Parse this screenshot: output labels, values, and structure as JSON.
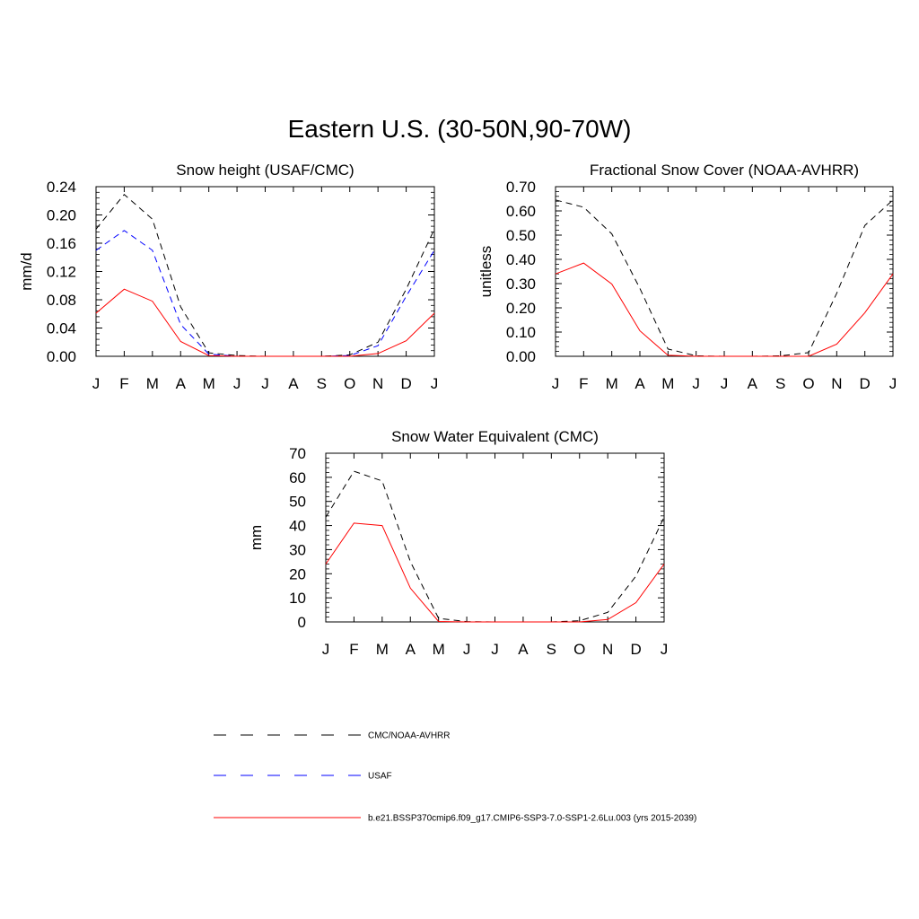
{
  "title": "Eastern U.S. (30-50N,90-70W)",
  "months": [
    "J",
    "F",
    "M",
    "A",
    "M",
    "J",
    "J",
    "A",
    "S",
    "O",
    "N",
    "D",
    "J"
  ],
  "legend": [
    {
      "label": "CMC/NOAA-AVHRR",
      "color": "#000000",
      "dash": true
    },
    {
      "label": "USAF",
      "color": "#0000ff",
      "dash": true
    },
    {
      "label": "b.e21.BSSP370cmip6.f09_g17.CMIP6-SSP3-7.0-SSP1-2.6Lu.003 (yrs 2015-2039)",
      "color": "#ff0000",
      "dash": false
    }
  ],
  "chart_data": [
    {
      "type": "line",
      "title": "Snow height (USAF/CMC)",
      "ylabel": "mm/d",
      "ylim": [
        0,
        0.24
      ],
      "yticks": [
        "0.00",
        "0.04",
        "0.08",
        "0.12",
        "0.16",
        "0.20",
        "0.24"
      ],
      "x": [
        "J",
        "F",
        "M",
        "A",
        "M",
        "J",
        "J",
        "A",
        "S",
        "O",
        "N",
        "D",
        "J"
      ],
      "series": [
        {
          "name": "CMC/NOAA-AVHRR",
          "color": "#000000",
          "dash": true,
          "values": [
            0.18,
            0.229,
            0.194,
            0.07,
            0.005,
            0.001,
            0.0,
            0.0,
            0.0,
            0.002,
            0.02,
            0.095,
            0.18
          ]
        },
        {
          "name": "USAF",
          "color": "#0000ff",
          "dash": true,
          "values": [
            0.15,
            0.178,
            0.15,
            0.045,
            0.003,
            0.0,
            0.0,
            0.0,
            0.0,
            0.001,
            0.015,
            0.085,
            0.15
          ]
        },
        {
          "name": "model",
          "color": "#ff0000",
          "dash": false,
          "values": [
            0.061,
            0.095,
            0.078,
            0.021,
            0.001,
            0.0,
            0.0,
            0.0,
            0.0,
            0.0,
            0.004,
            0.022,
            0.061
          ]
        }
      ]
    },
    {
      "type": "line",
      "title": "Fractional Snow Cover (NOAA-AVHRR)",
      "ylabel": "unitless",
      "ylim": [
        0,
        0.7
      ],
      "yticks": [
        "0.00",
        "0.10",
        "0.20",
        "0.30",
        "0.40",
        "0.50",
        "0.60",
        "0.70"
      ],
      "x": [
        "J",
        "F",
        "M",
        "A",
        "M",
        "J",
        "J",
        "A",
        "S",
        "O",
        "N",
        "D",
        "J"
      ],
      "series": [
        {
          "name": "CMC/NOAA-AVHRR",
          "color": "#000000",
          "dash": true,
          "values": [
            0.645,
            0.615,
            0.505,
            0.28,
            0.03,
            0.002,
            0.0,
            0.0,
            0.002,
            0.015,
            0.26,
            0.54,
            0.645
          ]
        },
        {
          "name": "model",
          "color": "#ff0000",
          "dash": false,
          "values": [
            0.34,
            0.385,
            0.298,
            0.105,
            0.004,
            0.0,
            0.0,
            0.0,
            0.0,
            0.0,
            0.05,
            0.18,
            0.34
          ]
        }
      ]
    },
    {
      "type": "line",
      "title": "Snow Water Equivalent (CMC)",
      "ylabel": "mm",
      "ylim": [
        0,
        70
      ],
      "yticks": [
        "0",
        "10",
        "20",
        "30",
        "40",
        "50",
        "60",
        "70"
      ],
      "x": [
        "J",
        "F",
        "M",
        "A",
        "M",
        "J",
        "J",
        "A",
        "S",
        "O",
        "N",
        "D",
        "J"
      ],
      "series": [
        {
          "name": "CMC/NOAA-AVHRR",
          "color": "#000000",
          "dash": true,
          "values": [
            43.5,
            62.5,
            58.5,
            25.0,
            1.5,
            0.1,
            0.0,
            0.0,
            0.0,
            0.5,
            4.0,
            19.0,
            43.5
          ]
        },
        {
          "name": "model",
          "color": "#ff0000",
          "dash": false,
          "values": [
            24.0,
            41.0,
            40.0,
            14.0,
            0.2,
            0.0,
            0.0,
            0.0,
            0.0,
            0.0,
            1.0,
            8.0,
            24.0
          ]
        }
      ]
    }
  ]
}
